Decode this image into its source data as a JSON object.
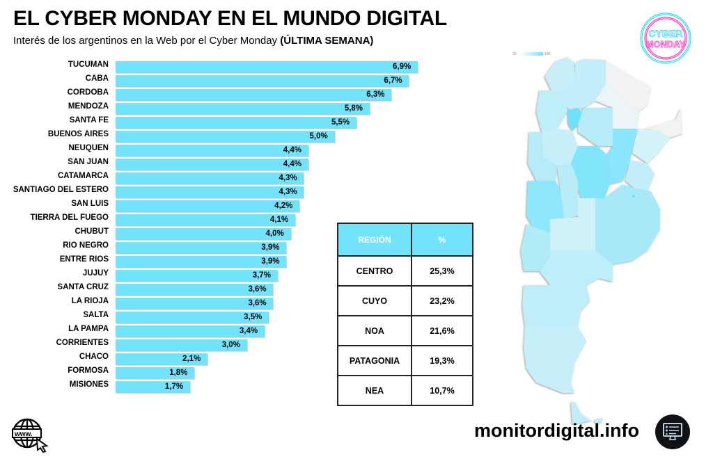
{
  "header": {
    "title": "EL CYBER MONDAY EN EL MUNDO DIGITAL",
    "subtitle": "Interés de los argentinos en la Web por el Cyber Monday",
    "subtitle_bold": "(ÚLTIMA SEMANA)"
  },
  "chart_data": {
    "type": "bar",
    "orientation": "horizontal",
    "title": "Interés de los argentinos en la Web por el Cyber Monday (ÚLTIMA SEMANA)",
    "xlabel": "",
    "ylabel": "",
    "unit": "%",
    "xlim": [
      0,
      6.9
    ],
    "grid": false,
    "bar_color": "#73e3fc",
    "categories": [
      "TUCUMAN",
      "CABA",
      "CORDOBA",
      "MENDOZA",
      "SANTA FE",
      "BUENOS AIRES",
      "NEUQUEN",
      "SAN JUAN",
      "CATAMARCA",
      "SANTIAGO DEL ESTERO",
      "SAN LUIS",
      "TIERRA DEL FUEGO",
      "CHUBUT",
      "RIO NEGRO",
      "ENTRE RIOS",
      "JUJUY",
      "SANTA CRUZ",
      "LA RIOJA",
      "SALTA",
      "LA PAMPA",
      "CORRIENTES",
      "CHACO",
      "FORMOSA",
      "MISIONES"
    ],
    "values": [
      6.9,
      6.7,
      6.3,
      5.8,
      5.5,
      5.0,
      4.4,
      4.4,
      4.3,
      4.3,
      4.2,
      4.1,
      4.0,
      3.9,
      3.9,
      3.7,
      3.6,
      3.6,
      3.5,
      3.4,
      3.0,
      2.1,
      1.8,
      1.7
    ],
    "value_labels": [
      "6,9%",
      "6,7%",
      "6,3%",
      "5,8%",
      "5,5%",
      "5,0%",
      "4,4%",
      "4,4%",
      "4,3%",
      "4,3%",
      "4,2%",
      "4,1%",
      "4,0%",
      "3,9%",
      "3,9%",
      "3,7%",
      "3,6%",
      "3,6%",
      "3,5%",
      "3,4%",
      "3,0%",
      "2,1%",
      "1,8%",
      "1,7%"
    ]
  },
  "region_table": {
    "headers": [
      "REGIÓN",
      "%"
    ],
    "rows": [
      {
        "region": "CENTRO",
        "value": "25,3%"
      },
      {
        "region": "CUYO",
        "value": "23,2%"
      },
      {
        "region": "NOA",
        "value": "21,6%"
      },
      {
        "region": "PATAGONIA",
        "value": "19,3%"
      },
      {
        "region": "NEA",
        "value": "10,7%"
      }
    ]
  },
  "map": {
    "legend_min": "25",
    "legend_max": "100",
    "colors": {
      "low": "#e6f6fb",
      "mid": "#b8ecf8",
      "high": "#73e3fc",
      "none": "#f1f3f3"
    }
  },
  "logo": {
    "line1": "CYBER",
    "line2": "MONDAY",
    "ring_color": "#3fd8f5",
    "text_color": "#ff3fc8"
  },
  "footer": {
    "site": "monitordigital.info",
    "www_text": "www."
  }
}
